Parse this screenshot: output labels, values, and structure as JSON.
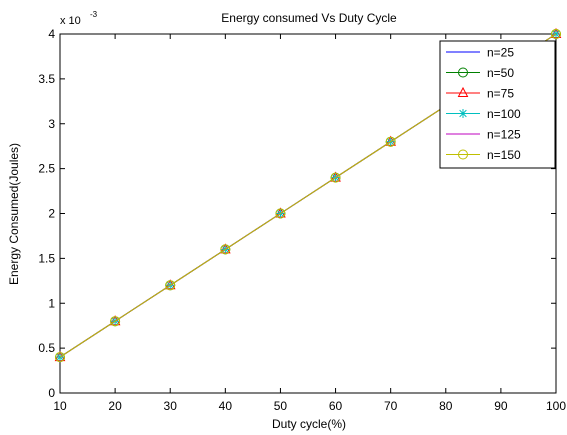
{
  "chart_data": {
    "type": "line",
    "title": "Energy consumed Vs Duty Cycle",
    "xlabel": "Duty cycle(%)",
    "ylabel": "Energy Consumed(Joules)",
    "y_multiplier_label": "x 10",
    "y_multiplier_exponent": "-3",
    "xlim": [
      10,
      100
    ],
    "ylim": [
      0,
      4
    ],
    "x_ticks": [
      10,
      20,
      30,
      40,
      50,
      60,
      70,
      80,
      90,
      100
    ],
    "y_ticks": [
      0,
      0.5,
      1,
      1.5,
      2,
      2.5,
      3,
      3.5,
      4
    ],
    "y_tick_labels": [
      "0",
      "0.5",
      "1",
      "1.5",
      "2",
      "2.5",
      "3",
      "3.5",
      "4"
    ],
    "grid": false,
    "legend_position": "top-right",
    "x": [
      10,
      20,
      30,
      40,
      50,
      60,
      70,
      80,
      100
    ],
    "series": [
      {
        "name": "n=25",
        "color": "#0000ff",
        "marker": "none",
        "values": [
          0.4,
          0.8,
          1.2,
          1.6,
          2.0,
          2.4,
          2.8,
          3.2,
          4.0
        ]
      },
      {
        "name": "n=50",
        "color": "#008000",
        "marker": "circle",
        "values": [
          0.4,
          0.8,
          1.2,
          1.6,
          2.0,
          2.4,
          2.8,
          3.2,
          4.0
        ]
      },
      {
        "name": "n=75",
        "color": "#ff0000",
        "marker": "triangle",
        "values": [
          0.4,
          0.8,
          1.2,
          1.6,
          2.0,
          2.4,
          2.8,
          3.2,
          4.0
        ]
      },
      {
        "name": "n=100",
        "color": "#00bfbf",
        "marker": "star",
        "values": [
          0.4,
          0.8,
          1.2,
          1.6,
          2.0,
          2.4,
          2.8,
          3.2,
          4.0
        ]
      },
      {
        "name": "n=125",
        "color": "#bf00bf",
        "marker": "none",
        "values": [
          0.4,
          0.8,
          1.2,
          1.6,
          2.0,
          2.4,
          2.8,
          3.2,
          4.0
        ]
      },
      {
        "name": "n=150",
        "color": "#bfbf00",
        "marker": "circle",
        "values": [
          0.4,
          0.8,
          1.2,
          1.6,
          2.0,
          2.4,
          2.8,
          3.2,
          4.0
        ]
      }
    ]
  }
}
